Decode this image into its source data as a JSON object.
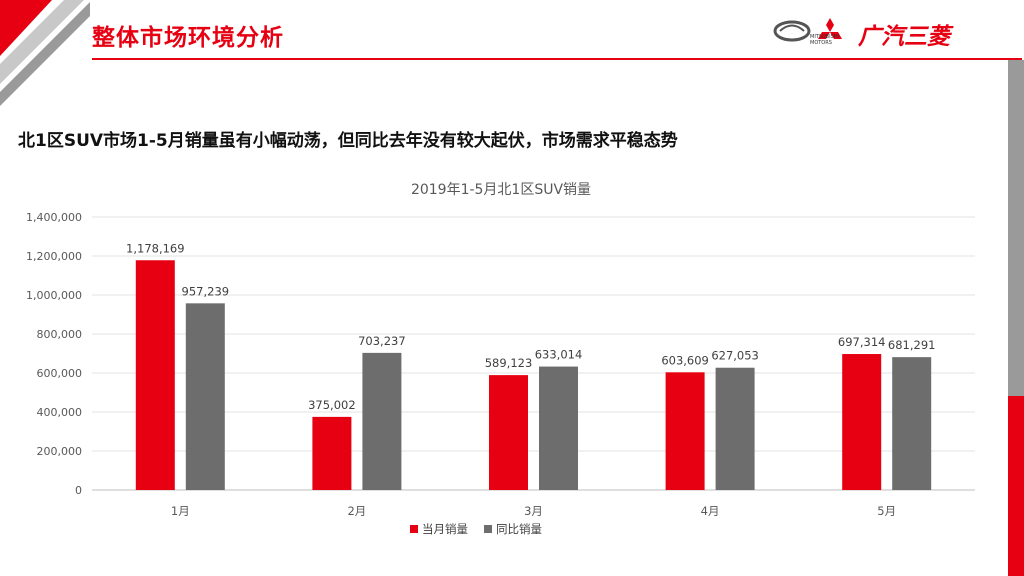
{
  "header": {
    "title": "整体市场环境分析",
    "brand_name": "广汽三菱",
    "brand_sub_line1": "MITSUBISHI",
    "brand_sub_line2": "MOTORS"
  },
  "headline": "北1区SUV市场1-5月销量虽有小幅动荡，但同比去年没有较大起伏，市场需求平稳态势",
  "colors": {
    "accent": "#e60012",
    "series_gray": "#6d6d6d"
  },
  "chart_data": {
    "type": "bar",
    "title": "2019年1-5月北1区SUV销量",
    "categories": [
      "1月",
      "2月",
      "3月",
      "4月",
      "5月"
    ],
    "series": [
      {
        "name": "当月销量",
        "color": "#e60012",
        "values": [
          1178169,
          375002,
          589123,
          603609,
          697314
        ],
        "labels": [
          "1,178,169",
          "375,002",
          "589,123",
          "603,609",
          "697,314"
        ]
      },
      {
        "name": "同比销量",
        "color": "#6d6d6d",
        "values": [
          957239,
          703237,
          633014,
          627053,
          681291
        ],
        "labels": [
          "957,239",
          "703,237",
          "633,014",
          "627,053",
          "681,291"
        ]
      }
    ],
    "ylim": [
      0,
      1400000
    ],
    "yticks": [
      "0",
      "200,000",
      "400,000",
      "600,000",
      "800,000",
      "1,000,000",
      "1,200,000",
      "1,400,000"
    ],
    "grid": true,
    "legend": "bottom"
  }
}
